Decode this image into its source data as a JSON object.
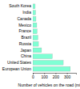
{
  "chart_data": {
    "type": "bar",
    "orientation": "horizontal",
    "categories": [
      "South Korea",
      "India",
      "Canada",
      "Mexico",
      "France",
      "Brazil",
      "Russia",
      "Japan",
      "China",
      "United States",
      "European Union"
    ],
    "values": [
      21,
      25,
      28,
      35,
      38,
      45,
      50,
      77,
      172,
      268,
      330
    ],
    "color": "#7fffd4",
    "xlabel": "Number of vehicles on the road (millions)",
    "xlim": [
      0,
      380
    ],
    "xticks": [
      0,
      100,
      200,
      300
    ],
    "grid": false
  }
}
